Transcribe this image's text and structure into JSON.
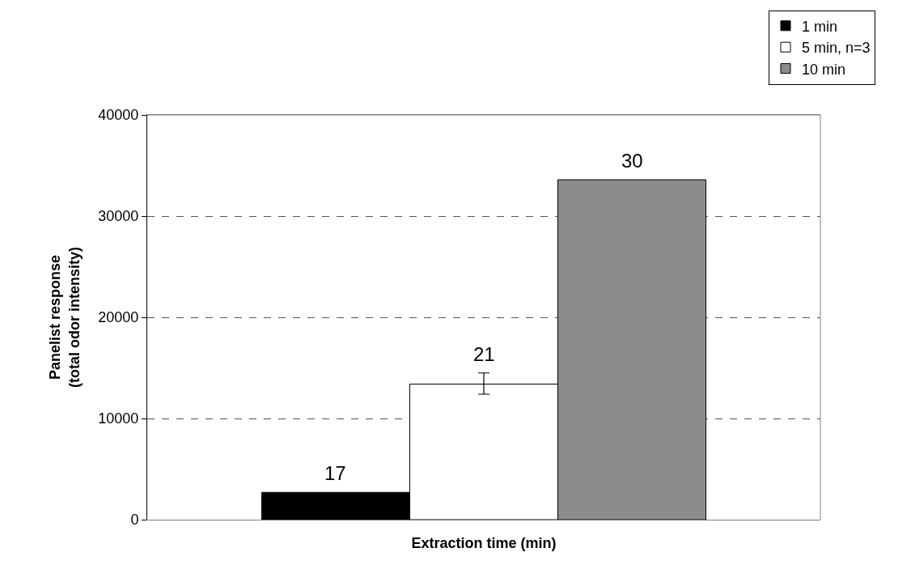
{
  "chart_data": {
    "type": "bar",
    "xlabel": "Extraction time (min)",
    "ylabel": "Panelist response\n(total odor intensity)",
    "categories": [
      null
    ],
    "series": [
      {
        "name": "1 min",
        "color": "#000000",
        "values": [
          2700
        ]
      },
      {
        "name": "5 min, n=3",
        "color": "#ffffff",
        "values": [
          13400
        ],
        "errors": [
          [
            12400,
            14500
          ]
        ]
      },
      {
        "name": "10 min",
        "color": "#8c8c8c",
        "values": [
          33600
        ]
      }
    ],
    "annotations": [
      {
        "text": "17",
        "y": 2700
      },
      {
        "text": "21",
        "y": 14500
      },
      {
        "text": "30",
        "y": 33600
      }
    ],
    "ylim": [
      0,
      40000
    ],
    "yticks": [
      0,
      10000,
      20000,
      30000,
      40000
    ],
    "grid": "y",
    "line_style": "dashed",
    "legend": "top right",
    "tick_labels": "y"
  }
}
